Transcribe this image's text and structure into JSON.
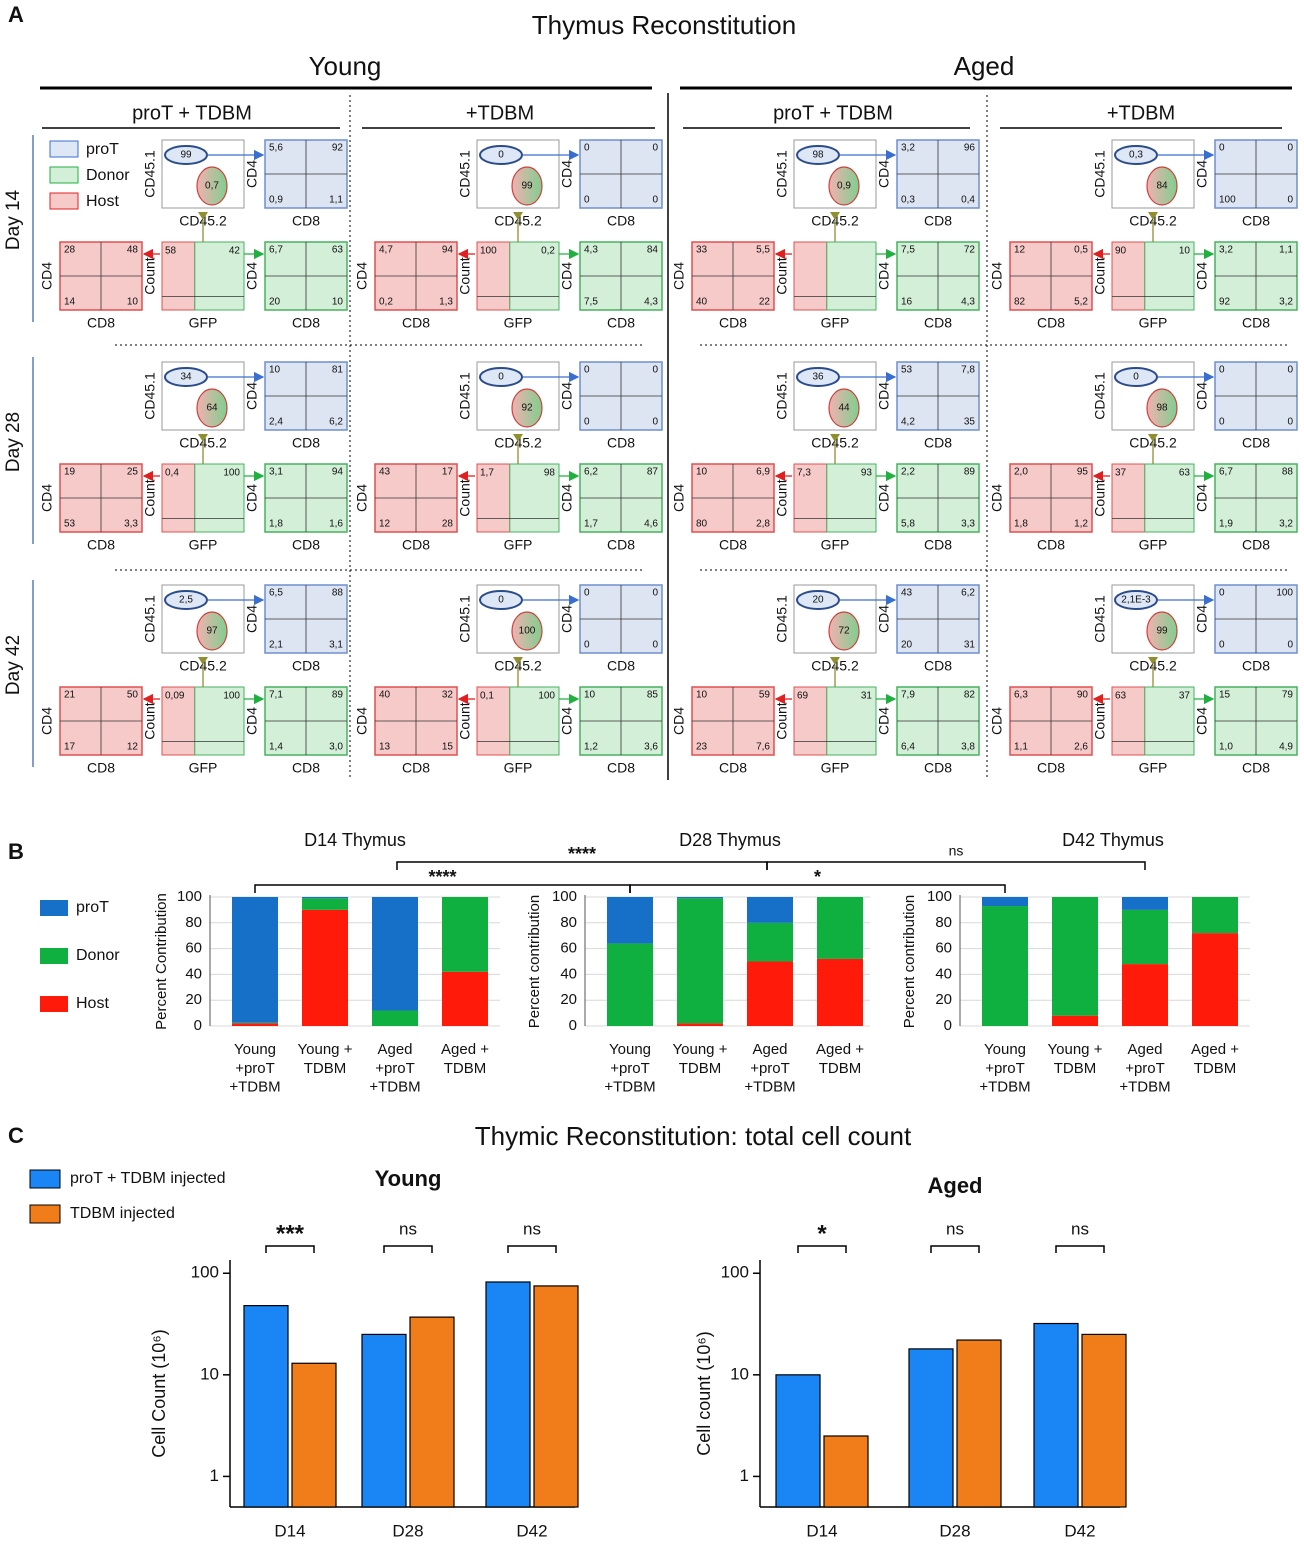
{
  "panel_labels": [
    "A",
    "B",
    "C"
  ],
  "panel_a": {
    "title": "Thymus Reconstitution",
    "ages": [
      "Young",
      "Aged"
    ],
    "treatments": [
      "proT + TDBM",
      "+TDBM"
    ],
    "legend": [
      "proT",
      "Donor",
      "Host"
    ],
    "axis_labels": {
      "cd45_1": "CD45.1",
      "cd45_2": "CD45.2",
      "cd4": "CD4",
      "cd8": "CD8",
      "count": "Count",
      "gfp": "GFP"
    },
    "days": [
      "Day 14",
      "Day 28",
      "Day 42"
    ],
    "plots": [
      [
        {
          "gate": [
            "99",
            "0,7"
          ],
          "prot": [
            "5,6",
            "92",
            "0,9",
            "1,1"
          ],
          "host": [
            "28",
            "48",
            "14",
            "10"
          ],
          "gfp": [
            "58",
            "42"
          ],
          "donor": [
            "6,7",
            "63",
            "20",
            "10"
          ]
        },
        {
          "gate": [
            "0",
            "99"
          ],
          "prot": [
            "0",
            "0",
            "0",
            "0"
          ],
          "host": [
            "4,7",
            "94",
            "0,2",
            "1,3"
          ],
          "gfp": [
            "100",
            "0,2"
          ],
          "donor": [
            "4,3",
            "84",
            "7,5",
            "4,3"
          ]
        },
        {
          "gate": [
            "98",
            "0,9"
          ],
          "prot": [
            "3,2",
            "96",
            "0,3",
            "0,4"
          ],
          "host": [
            "33",
            "5,5",
            "40",
            "22"
          ],
          "gfp": null,
          "donor": [
            "7,5",
            "72",
            "16",
            "4,3"
          ]
        },
        {
          "gate": [
            "0,3",
            "84"
          ],
          "prot": [
            "0",
            "0",
            "100",
            "0"
          ],
          "host": [
            "12",
            "0,5",
            "82",
            "5,2"
          ],
          "gfp": [
            "90",
            "10"
          ],
          "donor": [
            "3,2",
            "1,1",
            "92",
            "3,2"
          ]
        }
      ],
      [
        {
          "gate": [
            "34",
            "64"
          ],
          "prot": [
            "10",
            "81",
            "2,4",
            "6,2"
          ],
          "host": [
            "19",
            "25",
            "53",
            "3,3"
          ],
          "gfp": [
            "0,4",
            "100"
          ],
          "donor": [
            "3,1",
            "94",
            "1,8",
            "1,6"
          ]
        },
        {
          "gate": [
            "0",
            "92"
          ],
          "prot": [
            "0",
            "0",
            "0",
            "0"
          ],
          "host": [
            "43",
            "17",
            "12",
            "28"
          ],
          "gfp": [
            "1,7",
            "98"
          ],
          "donor": [
            "6,2",
            "87",
            "1,7",
            "4,6"
          ]
        },
        {
          "gate": [
            "36",
            "44"
          ],
          "prot": [
            "53",
            "7,8",
            "4,2",
            "35"
          ],
          "host": [
            "10",
            "6,9",
            "80",
            "2,8"
          ],
          "gfp": [
            "7,3",
            "93"
          ],
          "donor": [
            "2,2",
            "89",
            "5,8",
            "3,3"
          ]
        },
        {
          "gate": [
            "0",
            "98"
          ],
          "prot": [
            "0",
            "0",
            "0",
            "0"
          ],
          "host": [
            "2,0",
            "95",
            "1,8",
            "1,2"
          ],
          "gfp": [
            "37",
            "63"
          ],
          "donor": [
            "6,7",
            "88",
            "1,9",
            "3,2"
          ]
        }
      ],
      [
        {
          "gate": [
            "2,5",
            "97"
          ],
          "prot": [
            "6,5",
            "88",
            "2,1",
            "3,1"
          ],
          "host": [
            "21",
            "50",
            "17",
            "12"
          ],
          "gfp": [
            "0,09",
            "100"
          ],
          "donor": [
            "7,1",
            "89",
            "1,4",
            "3,0"
          ]
        },
        {
          "gate": [
            "0",
            "100"
          ],
          "prot": [
            "0",
            "0",
            "0",
            "0"
          ],
          "host": [
            "40",
            "32",
            "13",
            "15"
          ],
          "gfp": [
            "0,1",
            "100"
          ],
          "donor": [
            "10",
            "85",
            "1,2",
            "3,6"
          ]
        },
        {
          "gate": [
            "20",
            "72"
          ],
          "prot": [
            "43",
            "6,2",
            "20",
            "31"
          ],
          "host": [
            "10",
            "59",
            "23",
            "7,6"
          ],
          "gfp": [
            "69",
            "31"
          ],
          "donor": [
            "7,9",
            "82",
            "6,4",
            "3,8"
          ]
        },
        {
          "gate": [
            "2,1E-3",
            "99"
          ],
          "prot": [
            "0",
            "100",
            "0",
            "0"
          ],
          "host": [
            "6,3",
            "90",
            "1,1",
            "2,6"
          ],
          "gfp": [
            "63",
            "37"
          ],
          "donor": [
            "15",
            "79",
            "1,0",
            "4,9"
          ]
        }
      ]
    ]
  },
  "panel_b": {
    "significance": [
      "****",
      "****",
      "*",
      "ns"
    ]
  },
  "panel_c": {
    "title": "Thymic Reconstitution: total cell count"
  },
  "chart_data": [
    {
      "type": "stacked_bar",
      "title": "D14 Thymus",
      "ylabel": "Percent Contribution",
      "categories": [
        "Young\n+proT\n+TDBM",
        "Young +\nTDBM",
        "Aged\n+proT\n+TDBM",
        "Aged +\nTDBM"
      ],
      "series": [
        {
          "name": "Host",
          "color": "#ff1a0a",
          "values": [
            2,
            90,
            0,
            42
          ]
        },
        {
          "name": "Donor",
          "color": "#10b040",
          "values": [
            0.5,
            9,
            12,
            58
          ]
        },
        {
          "name": "proT",
          "color": "#1670c8",
          "values": [
            97.5,
            1,
            88,
            0
          ]
        }
      ],
      "ylim": [
        0,
        100
      ],
      "yticks": [
        0,
        20,
        40,
        60,
        80,
        100
      ],
      "grid": true
    },
    {
      "type": "stacked_bar",
      "title": "D28 Thymus",
      "ylabel": "Percent contribution",
      "categories": [
        "Young\n+proT\n+TDBM",
        "Young +\nTDBM",
        "Aged\n+proT\n+TDBM",
        "Aged +\nTDBM"
      ],
      "series": [
        {
          "name": "Host",
          "color": "#ff1a0a",
          "values": [
            0,
            2,
            50,
            52
          ]
        },
        {
          "name": "Donor",
          "color": "#10b040",
          "values": [
            64,
            97,
            30,
            48
          ]
        },
        {
          "name": "proT",
          "color": "#1670c8",
          "values": [
            36,
            1,
            20,
            0
          ]
        }
      ],
      "ylim": [
        0,
        100
      ],
      "yticks": [
        0,
        20,
        40,
        60,
        80,
        100
      ],
      "grid": true
    },
    {
      "type": "stacked_bar",
      "title": "D42 Thymus",
      "ylabel": "Percent contribution",
      "categories": [
        "Young\n+proT\n+TDBM",
        "Young +\nTDBM",
        "Aged\n+proT\n+TDBM",
        "Aged +\nTDBM"
      ],
      "series": [
        {
          "name": "Host",
          "color": "#ff1a0a",
          "values": [
            0,
            8,
            48,
            72
          ]
        },
        {
          "name": "Donor",
          "color": "#10b040",
          "values": [
            93,
            92,
            42,
            28
          ]
        },
        {
          "name": "proT",
          "color": "#1670c8",
          "values": [
            7,
            0,
            10,
            0
          ]
        }
      ],
      "ylim": [
        0,
        100
      ],
      "yticks": [
        0,
        20,
        40,
        60,
        80,
        100
      ],
      "grid": true
    },
    {
      "type": "bar",
      "log_scale": true,
      "title": "Young",
      "ylabel": "Cell Count (10⁶)",
      "categories": [
        "D14",
        "D28",
        "D42"
      ],
      "series": [
        {
          "name": "proT + TDBM injected",
          "color": "#1a86f5",
          "values": [
            48,
            25,
            82
          ]
        },
        {
          "name": "TDBM injected",
          "color": "#f07d1a",
          "values": [
            13,
            37,
            75
          ]
        }
      ],
      "ylim": [
        0.5,
        135
      ],
      "yticks": [
        1,
        10,
        100
      ],
      "annotations": [
        "***",
        "ns",
        "ns"
      ]
    },
    {
      "type": "bar",
      "log_scale": true,
      "title": "Aged",
      "ylabel": "Cell count (10⁶)",
      "categories": [
        "D14",
        "D28",
        "D42"
      ],
      "series": [
        {
          "name": "proT + TDBM injected",
          "color": "#1a86f5",
          "values": [
            10,
            18,
            32
          ]
        },
        {
          "name": "TDBM injected",
          "color": "#f07d1a",
          "values": [
            2.5,
            22,
            25
          ]
        }
      ],
      "ylim": [
        0.5,
        135
      ],
      "yticks": [
        1,
        10,
        100
      ],
      "annotations": [
        "*",
        "ns",
        "ns"
      ]
    }
  ]
}
